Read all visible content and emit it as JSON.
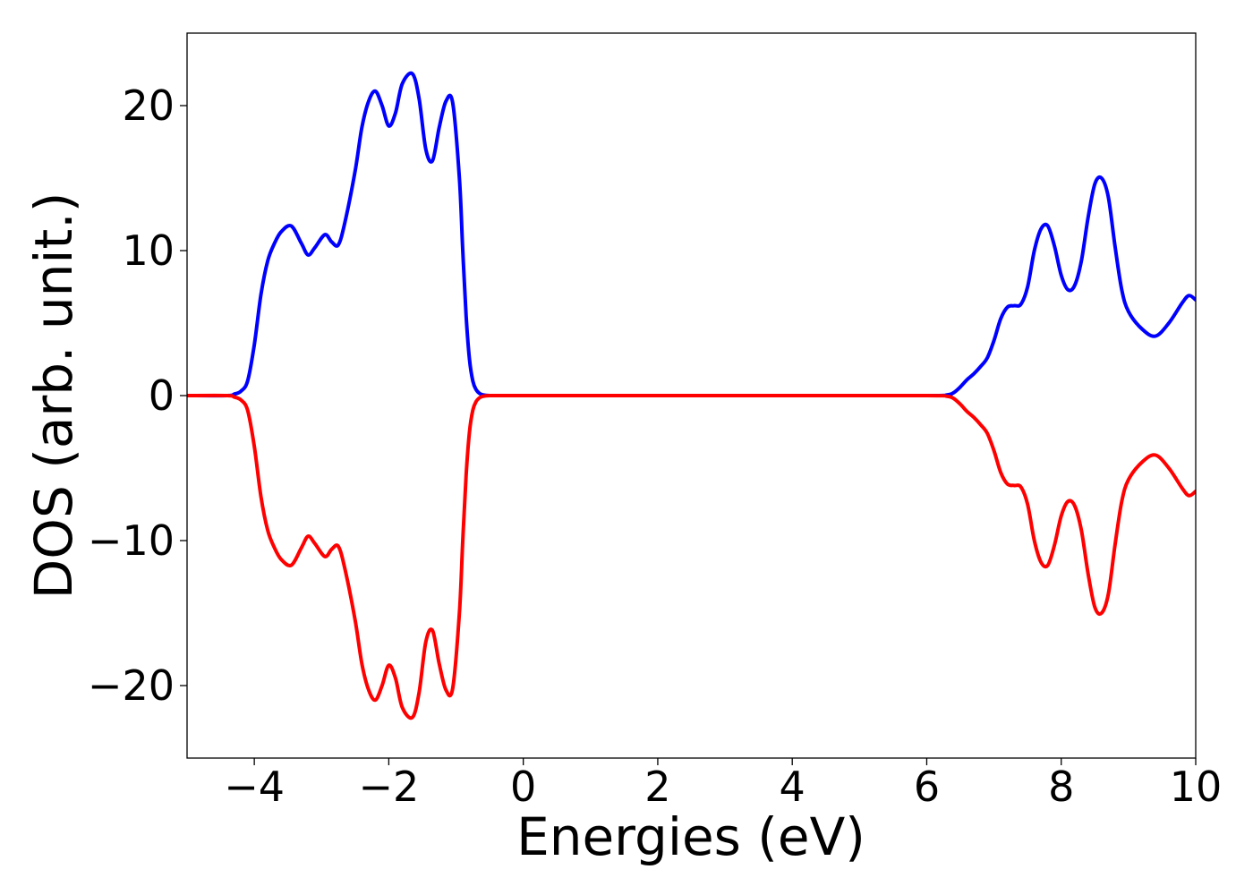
{
  "chart_data": {
    "type": "line",
    "title": "",
    "xlabel": "Energies (eV)",
    "ylabel": "DOS (arb. unit.)",
    "xlim": [
      -5,
      10
    ],
    "ylim": [
      -25,
      25
    ],
    "xticks": [
      -4,
      -2,
      0,
      2,
      4,
      6,
      8,
      10
    ],
    "xtick_labels": [
      "−4",
      "−2",
      "0",
      "2",
      "4",
      "6",
      "8",
      "10"
    ],
    "yticks": [
      -20,
      -10,
      0,
      10,
      20
    ],
    "ytick_labels": [
      "−20",
      "−10",
      "0",
      "10",
      "20"
    ],
    "grid": false,
    "legend": "none",
    "series": [
      {
        "color": "#0000ff",
        "x": [
          -5.0,
          -4.4,
          -4.3,
          -4.2,
          -4.1,
          -4.0,
          -3.9,
          -3.8,
          -3.7,
          -3.6,
          -3.45,
          -3.3,
          -3.2,
          -3.1,
          -2.95,
          -2.85,
          -2.75,
          -2.65,
          -2.5,
          -2.4,
          -2.3,
          -2.2,
          -2.1,
          -2.0,
          -1.9,
          -1.8,
          -1.65,
          -1.55,
          -1.45,
          -1.35,
          -1.25,
          -1.15,
          -1.05,
          -0.95,
          -0.9,
          -0.85,
          -0.8,
          -0.75,
          -0.7,
          -0.65,
          -0.6,
          -0.5,
          -0.3,
          0.0,
          2.0,
          4.0,
          6.0,
          6.3,
          6.4,
          6.5,
          6.6,
          6.7,
          6.8,
          6.9,
          7.0,
          7.1,
          7.2,
          7.3,
          7.4,
          7.5,
          7.6,
          7.7,
          7.8,
          7.9,
          8.0,
          8.1,
          8.2,
          8.3,
          8.4,
          8.5,
          8.6,
          8.7,
          8.8,
          8.9,
          9.0,
          9.2,
          9.4,
          9.6,
          9.8,
          9.9,
          10.0
        ],
        "y": [
          0.0,
          0.0,
          0.1,
          0.3,
          1.0,
          3.5,
          7.0,
          9.3,
          10.5,
          11.3,
          11.7,
          10.5,
          9.7,
          10.2,
          11.1,
          10.6,
          10.4,
          12.0,
          15.5,
          18.5,
          20.3,
          21.0,
          20.0,
          18.6,
          19.5,
          21.5,
          22.2,
          20.5,
          17.0,
          16.2,
          18.5,
          20.3,
          20.2,
          15.0,
          10.0,
          5.5,
          2.5,
          1.0,
          0.4,
          0.15,
          0.05,
          0.0,
          0.0,
          0.0,
          0.0,
          0.0,
          0.0,
          0.05,
          0.2,
          0.6,
          1.1,
          1.5,
          2.0,
          2.6,
          3.8,
          5.3,
          6.1,
          6.2,
          6.3,
          7.5,
          10.0,
          11.5,
          11.7,
          10.3,
          8.3,
          7.3,
          7.6,
          9.3,
          12.3,
          14.6,
          15.0,
          13.7,
          10.3,
          7.3,
          5.8,
          4.6,
          4.1,
          5.0,
          6.4,
          6.9,
          6.6
        ]
      },
      {
        "color": "#ff0000",
        "x": [
          -5.0,
          -4.4,
          -4.3,
          -4.2,
          -4.1,
          -4.0,
          -3.9,
          -3.8,
          -3.7,
          -3.6,
          -3.45,
          -3.3,
          -3.2,
          -3.1,
          -2.95,
          -2.85,
          -2.75,
          -2.65,
          -2.5,
          -2.4,
          -2.3,
          -2.2,
          -2.1,
          -2.0,
          -1.9,
          -1.8,
          -1.65,
          -1.55,
          -1.45,
          -1.35,
          -1.25,
          -1.15,
          -1.05,
          -0.95,
          -0.9,
          -0.85,
          -0.8,
          -0.75,
          -0.7,
          -0.65,
          -0.6,
          -0.5,
          -0.3,
          0.0,
          2.0,
          4.0,
          6.0,
          6.3,
          6.4,
          6.5,
          6.6,
          6.7,
          6.8,
          6.9,
          7.0,
          7.1,
          7.2,
          7.3,
          7.4,
          7.5,
          7.6,
          7.7,
          7.8,
          7.9,
          8.0,
          8.1,
          8.2,
          8.3,
          8.4,
          8.5,
          8.6,
          8.7,
          8.8,
          8.9,
          9.0,
          9.2,
          9.4,
          9.6,
          9.8,
          9.9,
          10.0
        ],
        "y": [
          0.0,
          0.0,
          -0.1,
          -0.3,
          -1.0,
          -3.5,
          -7.0,
          -9.3,
          -10.5,
          -11.3,
          -11.7,
          -10.5,
          -9.7,
          -10.2,
          -11.1,
          -10.6,
          -10.4,
          -12.0,
          -15.5,
          -18.5,
          -20.3,
          -21.0,
          -20.0,
          -18.6,
          -19.5,
          -21.5,
          -22.2,
          -20.5,
          -17.0,
          -16.2,
          -18.5,
          -20.3,
          -20.2,
          -15.0,
          -10.0,
          -5.5,
          -2.5,
          -1.0,
          -0.4,
          -0.15,
          -0.05,
          0.0,
          0.0,
          0.0,
          0.0,
          0.0,
          0.0,
          -0.05,
          -0.2,
          -0.6,
          -1.1,
          -1.5,
          -2.0,
          -2.6,
          -3.8,
          -5.3,
          -6.1,
          -6.2,
          -6.3,
          -7.5,
          -10.0,
          -11.5,
          -11.7,
          -10.3,
          -8.3,
          -7.3,
          -7.6,
          -9.3,
          -12.3,
          -14.6,
          -15.0,
          -13.7,
          -10.3,
          -7.3,
          -5.8,
          -4.6,
          -4.1,
          -5.0,
          -6.4,
          -6.9,
          -6.6
        ]
      }
    ]
  }
}
